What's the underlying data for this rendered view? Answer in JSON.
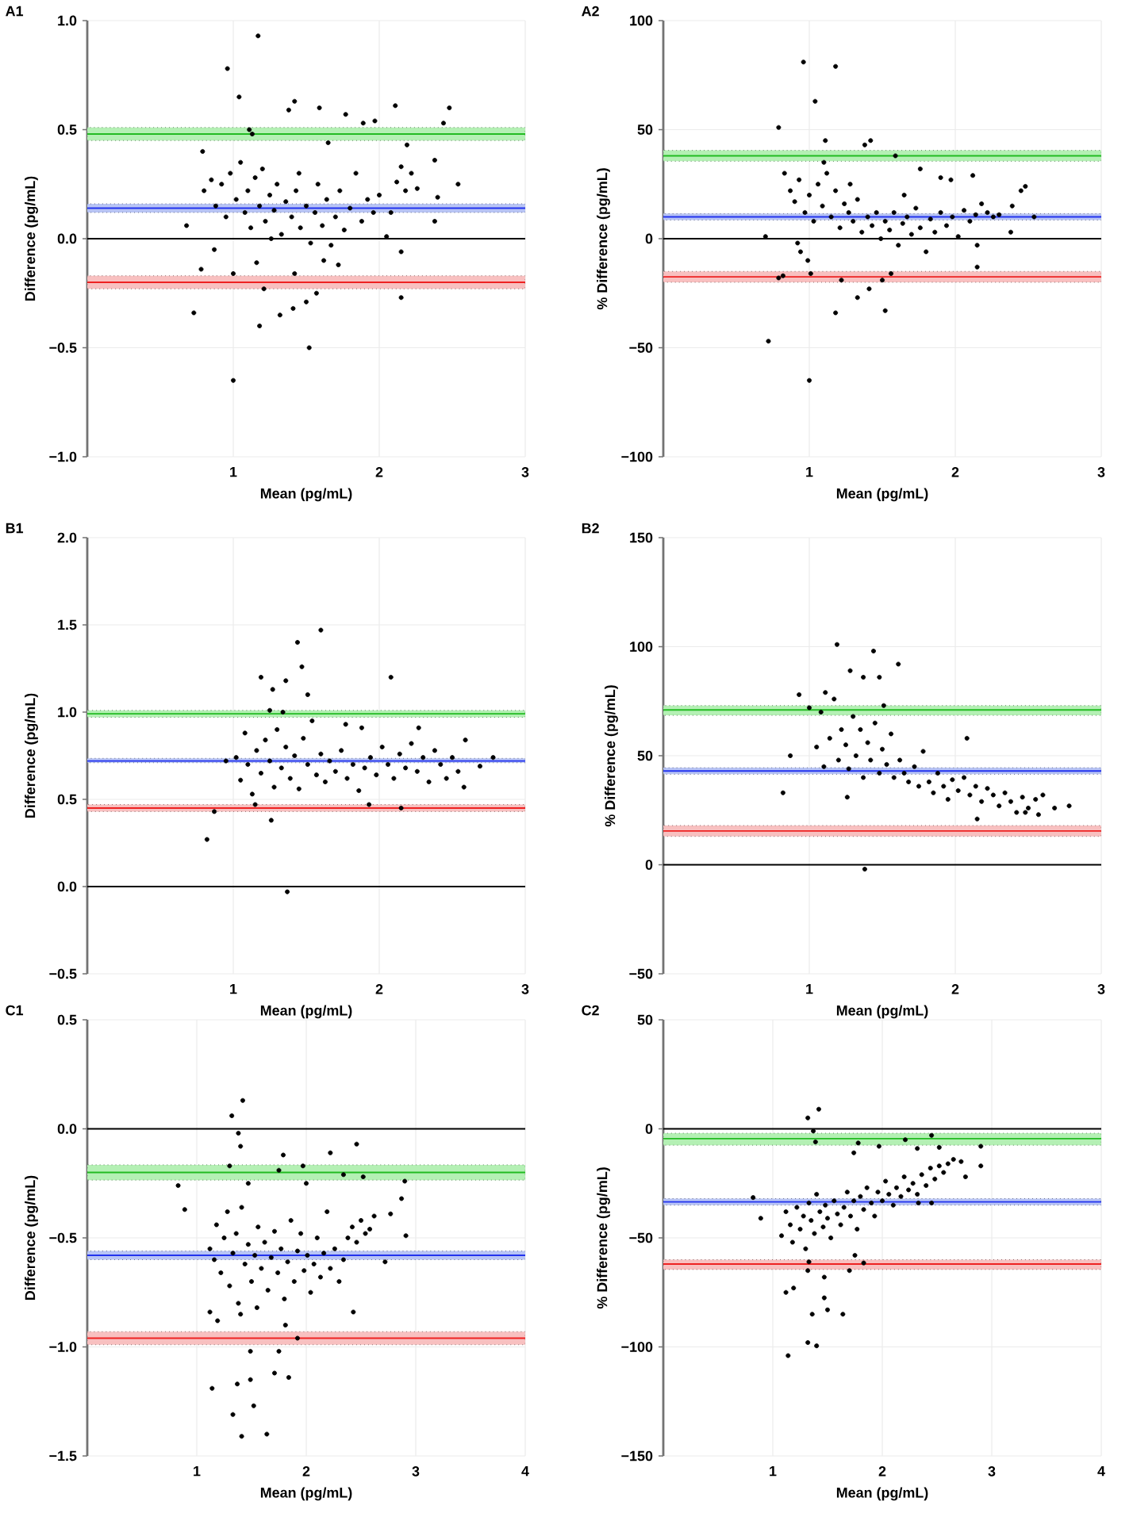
{
  "chart_data": [
    {
      "type": "scatter",
      "title": "A1",
      "xlabel": "Mean (pg/mL)",
      "ylabel": "Difference (pg/mL)",
      "color": "#000000",
      "grid": true,
      "xlim": [
        0,
        3
      ],
      "xticks": [
        1,
        2,
        3
      ],
      "ylim": [
        -1,
        1
      ],
      "yticks": [
        {
          "value": -1,
          "label": "−1.0"
        },
        {
          "value": -0.5,
          "label": "−0.5"
        },
        {
          "value": 0,
          "label": "0.0"
        },
        {
          "value": 0.5,
          "label": "0.5"
        },
        {
          "value": 1,
          "label": "1.0"
        }
      ],
      "ref_lines": [
        {
          "axis": "y",
          "value": 0,
          "color": "#000000"
        },
        {
          "axis": "y",
          "value": 0.48,
          "color": "#22bb22"
        },
        {
          "axis": "y",
          "value": 0.14,
          "color": "#2233ee"
        },
        {
          "axis": "y",
          "value": -0.2,
          "color": "#ee2222"
        }
      ],
      "bands": [
        {
          "axis": "y",
          "from": 0.45,
          "to": 0.51,
          "color": "#b4f0b4"
        },
        {
          "axis": "y",
          "from": 0.12,
          "to": 0.16,
          "color": "#b8c4f5"
        },
        {
          "axis": "y",
          "from": -0.23,
          "to": -0.17,
          "color": "#f8c0c0"
        }
      ],
      "x": [
        1.17,
        0.96,
        1.04,
        1.38,
        1.42,
        1.59,
        1.77,
        1.89,
        1.97,
        2.11,
        2.48,
        2.44,
        2.54,
        2.38,
        2.4,
        2.38,
        2.19,
        1.11,
        1.13,
        1.65,
        0.79,
        0.68,
        0.73,
        0.78,
        1.0,
        1.21,
        1.18,
        1.0,
        1.52,
        1.32,
        1.41,
        1.5,
        1.57,
        2.15,
        2.15,
        1.42,
        1.16,
        0.87,
        0.8,
        0.85,
        0.88,
        0.92,
        0.95,
        0.98,
        1.02,
        1.05,
        1.08,
        1.1,
        1.12,
        1.15,
        1.18,
        1.2,
        1.22,
        1.25,
        1.28,
        1.3,
        1.33,
        1.36,
        1.4,
        1.43,
        1.46,
        1.5,
        1.53,
        1.56,
        1.58,
        1.61,
        1.64,
        1.67,
        1.7,
        1.73,
        1.76,
        1.8,
        1.84,
        1.88,
        1.92,
        1.96,
        2.0,
        2.05,
        2.08,
        2.12,
        2.15,
        2.18,
        2.22,
        2.26,
        1.62,
        1.72,
        1.45,
        1.26
      ],
      "values": [
        0.93,
        0.78,
        0.65,
        0.59,
        0.63,
        0.6,
        0.57,
        0.53,
        0.54,
        0.61,
        0.6,
        0.53,
        0.25,
        0.36,
        0.19,
        0.08,
        0.43,
        0.5,
        0.48,
        0.44,
        0.4,
        0.06,
        -0.34,
        -0.14,
        -0.16,
        -0.23,
        -0.4,
        -0.65,
        -0.5,
        -0.35,
        -0.32,
        -0.29,
        -0.25,
        -0.27,
        -0.06,
        -0.16,
        -0.11,
        -0.05,
        0.22,
        0.27,
        0.15,
        0.25,
        0.1,
        0.3,
        0.18,
        0.35,
        0.12,
        0.22,
        0.05,
        0.28,
        0.15,
        0.32,
        0.08,
        0.2,
        0.13,
        0.25,
        0.02,
        0.17,
        0.1,
        0.22,
        0.05,
        0.15,
        -0.02,
        0.12,
        0.25,
        0.06,
        0.18,
        -0.03,
        0.1,
        0.22,
        0.04,
        0.14,
        0.3,
        0.08,
        0.18,
        0.12,
        0.2,
        0.01,
        0.12,
        0.26,
        0.33,
        0.22,
        0.3,
        0.23,
        -0.1,
        -0.12,
        0.3,
        0.0
      ]
    },
    {
      "type": "scatter",
      "title": "A2",
      "xlabel": "Mean (pg/mL)",
      "ylabel": "% Difference (pg/mL)",
      "color": "#000000",
      "grid": true,
      "xlim": [
        0,
        3
      ],
      "xticks": [
        1,
        2,
        3
      ],
      "ylim": [
        -100,
        100
      ],
      "yticks": [
        {
          "value": -100,
          "label": "−100"
        },
        {
          "value": -50,
          "label": "−50"
        },
        0,
        50,
        100
      ],
      "ref_lines": [
        {
          "axis": "y",
          "value": 0,
          "color": "#000000"
        },
        {
          "axis": "y",
          "value": 38,
          "color": "#22bb22"
        },
        {
          "axis": "y",
          "value": 10,
          "color": "#2233ee"
        },
        {
          "axis": "y",
          "value": -17.5,
          "color": "#ee2222"
        }
      ],
      "bands": [
        {
          "axis": "y",
          "from": 35.5,
          "to": 40.5,
          "color": "#b4f0b4"
        },
        {
          "axis": "y",
          "from": 8.5,
          "to": 11.5,
          "color": "#b8c4f5"
        },
        {
          "axis": "y",
          "from": -20,
          "to": -15,
          "color": "#f8c0c0"
        }
      ],
      "x": [
        0.96,
        1.18,
        1.04,
        0.79,
        1.11,
        1.42,
        1.38,
        1.59,
        1.76,
        1.9,
        1.97,
        2.12,
        2.48,
        2.45,
        2.54,
        2.38,
        2.39,
        2.15,
        2.15,
        0.72,
        1.0,
        0.99,
        1.01,
        1.22,
        1.18,
        1.33,
        1.41,
        1.52,
        1.5,
        0.7,
        0.79,
        0.82,
        0.92,
        0.94,
        1.56,
        0.83,
        0.87,
        0.9,
        0.93,
        0.97,
        1.0,
        1.03,
        1.06,
        1.09,
        1.12,
        1.15,
        1.18,
        1.21,
        1.24,
        1.27,
        1.3,
        1.33,
        1.36,
        1.4,
        1.43,
        1.46,
        1.49,
        1.52,
        1.55,
        1.58,
        1.61,
        1.64,
        1.67,
        1.7,
        1.73,
        1.76,
        1.8,
        1.83,
        1.86,
        1.9,
        1.94,
        1.98,
        2.02,
        2.06,
        2.1,
        2.14,
        2.18,
        2.22,
        2.26,
        2.3,
        1.65,
        1.28,
        1.1
      ],
      "values": [
        81,
        79,
        63,
        51,
        45,
        45,
        43,
        38,
        32,
        28,
        27,
        29,
        24,
        22,
        10,
        3,
        15,
        -3,
        -13,
        -47,
        -65,
        -10,
        -16,
        -19,
        -34,
        -27,
        -23,
        -33,
        -19,
        1,
        -18,
        -17,
        -2,
        -6,
        -16,
        30,
        22,
        17,
        27,
        12,
        20,
        8,
        25,
        15,
        30,
        10,
        22,
        5,
        16,
        12,
        8,
        18,
        3,
        10,
        6,
        12,
        0,
        8,
        4,
        12,
        -3,
        7,
        10,
        2,
        14,
        5,
        -6,
        9,
        3,
        12,
        6,
        10,
        1,
        13,
        8,
        11,
        16,
        12,
        10,
        11,
        20,
        25,
        35
      ]
    },
    {
      "type": "scatter",
      "title": "B1",
      "xlabel": "Mean (pg/mL)",
      "ylabel": "Difference (pg/mL)",
      "color": "#000000",
      "grid": true,
      "xlim": [
        0,
        3
      ],
      "xticks": [
        1,
        2,
        3
      ],
      "ylim": [
        -0.5,
        2
      ],
      "yticks": [
        {
          "value": -0.5,
          "label": "−0.5"
        },
        {
          "value": 0,
          "label": "0.0"
        },
        {
          "value": 0.5,
          "label": "0.5"
        },
        {
          "value": 1,
          "label": "1.0"
        },
        {
          "value": 1.5,
          "label": "1.5"
        },
        {
          "value": 2,
          "label": "2.0"
        }
      ],
      "ref_lines": [
        {
          "axis": "y",
          "value": 0,
          "color": "#000000"
        },
        {
          "axis": "y",
          "value": 0.99,
          "color": "#22bb22"
        },
        {
          "axis": "y",
          "value": 0.72,
          "color": "#2233ee"
        },
        {
          "axis": "y",
          "value": 0.45,
          "color": "#ee2222"
        }
      ],
      "bands": [
        {
          "axis": "y",
          "from": 0.97,
          "to": 1.01,
          "color": "#b4f0b4"
        },
        {
          "axis": "y",
          "from": 0.71,
          "to": 0.735,
          "color": "#b8c4f5"
        },
        {
          "axis": "y",
          "from": 0.43,
          "to": 0.47,
          "color": "#f8c0c0"
        }
      ],
      "x": [
        1.6,
        1.44,
        1.47,
        1.19,
        2.08,
        1.36,
        1.27,
        1.51,
        1.25,
        1.34,
        0.82,
        0.87,
        1.37,
        1.26,
        1.15,
        1.93,
        2.15,
        2.78,
        2.69,
        2.59,
        2.58,
        1.77,
        1.88,
        2.27,
        0.95,
        1.02,
        1.05,
        1.08,
        1.1,
        1.13,
        1.16,
        1.19,
        1.22,
        1.25,
        1.28,
        1.3,
        1.33,
        1.36,
        1.39,
        1.42,
        1.45,
        1.48,
        1.51,
        1.54,
        1.57,
        1.6,
        1.63,
        1.66,
        1.7,
        1.74,
        1.78,
        1.82,
        1.86,
        1.9,
        1.94,
        1.98,
        2.02,
        2.06,
        2.1,
        2.14,
        2.18,
        2.22,
        2.26,
        2.3,
        2.34,
        2.38,
        2.42,
        2.46,
        2.5,
        2.54
      ],
      "values": [
        1.47,
        1.4,
        1.26,
        1.2,
        1.2,
        1.18,
        1.13,
        1.1,
        1.01,
        1.0,
        0.27,
        0.43,
        -0.03,
        0.38,
        0.47,
        0.47,
        0.45,
        0.74,
        0.69,
        0.84,
        0.57,
        0.93,
        0.91,
        0.91,
        0.72,
        0.74,
        0.61,
        0.88,
        0.7,
        0.53,
        0.78,
        0.65,
        0.84,
        0.72,
        0.57,
        0.9,
        0.68,
        0.8,
        0.62,
        0.75,
        0.56,
        0.85,
        0.7,
        0.95,
        0.64,
        0.76,
        0.6,
        0.72,
        0.66,
        0.78,
        0.62,
        0.7,
        0.55,
        0.68,
        0.74,
        0.64,
        0.8,
        0.7,
        0.62,
        0.76,
        0.68,
        0.82,
        0.66,
        0.74,
        0.6,
        0.78,
        0.7,
        0.62,
        0.74,
        0.66
      ]
    },
    {
      "type": "scatter",
      "title": "B2",
      "xlabel": "Mean (pg/mL)",
      "ylabel": "% Difference (pg/mL)",
      "color": "#000000",
      "grid": true,
      "xlim": [
        0,
        3
      ],
      "xticks": [
        1,
        2,
        3
      ],
      "ylim": [
        -50,
        150
      ],
      "yticks": [
        {
          "value": -50,
          "label": "−50"
        },
        0,
        50,
        100,
        150
      ],
      "ref_lines": [
        {
          "axis": "y",
          "value": 0,
          "color": "#000000"
        },
        {
          "axis": "y",
          "value": 71,
          "color": "#22bb22"
        },
        {
          "axis": "y",
          "value": 43,
          "color": "#2233ee"
        },
        {
          "axis": "y",
          "value": 15.5,
          "color": "#ee2222"
        }
      ],
      "bands": [
        {
          "axis": "y",
          "from": 68.5,
          "to": 73,
          "color": "#b4f0b4"
        },
        {
          "axis": "y",
          "from": 41.5,
          "to": 44.5,
          "color": "#b8c4f5"
        },
        {
          "axis": "y",
          "from": 13,
          "to": 18,
          "color": "#f8c0c0"
        }
      ],
      "x": [
        1.19,
        1.44,
        1.61,
        1.28,
        1.37,
        1.48,
        0.93,
        1.11,
        0.82,
        0.87,
        1.26,
        1.38,
        2.15,
        2.08,
        2.78,
        2.57,
        2.68,
        1.51,
        1.0,
        1.05,
        1.08,
        1.1,
        1.14,
        1.17,
        1.2,
        1.22,
        1.25,
        1.27,
        1.3,
        1.32,
        1.35,
        1.37,
        1.4,
        1.42,
        1.45,
        1.48,
        1.5,
        1.53,
        1.56,
        1.58,
        1.62,
        1.65,
        1.68,
        1.72,
        1.75,
        1.78,
        1.82,
        1.85,
        1.88,
        1.92,
        1.95,
        1.98,
        2.02,
        2.06,
        2.1,
        2.14,
        2.18,
        2.22,
        2.26,
        2.3,
        2.34,
        2.38,
        2.42,
        2.46,
        2.5,
        2.55,
        2.6,
        2.48
      ],
      "values": [
        101,
        98,
        92,
        89,
        86,
        86,
        78,
        79,
        33,
        50,
        31,
        -2,
        21,
        58,
        27,
        23,
        26,
        73,
        72,
        54,
        70,
        45,
        58,
        76,
        48,
        62,
        55,
        44,
        68,
        50,
        62,
        40,
        56,
        48,
        65,
        42,
        53,
        46,
        60,
        40,
        48,
        42,
        38,
        45,
        36,
        52,
        38,
        33,
        42,
        36,
        30,
        39,
        34,
        40,
        32,
        36,
        29,
        35,
        32,
        27,
        33,
        29,
        24,
        31,
        26,
        30,
        32,
        24
      ]
    },
    {
      "type": "scatter",
      "title": "C1",
      "xlabel": "Mean (pg/mL)",
      "ylabel": "Difference (pg/mL)",
      "color": "#000000",
      "grid": true,
      "xlim": [
        0,
        4
      ],
      "xticks": [
        1,
        2,
        3,
        4
      ],
      "ylim": [
        -1.5,
        0.5
      ],
      "yticks": [
        {
          "value": -1.5,
          "label": "−1.5"
        },
        {
          "value": -1,
          "label": "−1.0"
        },
        {
          "value": -0.5,
          "label": "−0.5"
        },
        {
          "value": 0,
          "label": "0.0"
        },
        {
          "value": 0.5,
          "label": "0.5"
        }
      ],
      "ref_lines": [
        {
          "axis": "y",
          "value": 0,
          "color": "#000000"
        },
        {
          "axis": "y",
          "value": -0.2,
          "color": "#22bb22"
        },
        {
          "axis": "y",
          "value": -0.58,
          "color": "#2233ee"
        },
        {
          "axis": "y",
          "value": -0.96,
          "color": "#ee2222"
        }
      ],
      "bands": [
        {
          "axis": "y",
          "from": -0.235,
          "to": -0.165,
          "color": "#b4f0b4"
        },
        {
          "axis": "y",
          "from": -0.6,
          "to": -0.56,
          "color": "#b8c4f5"
        },
        {
          "axis": "y",
          "from": -0.99,
          "to": -0.93,
          "color": "#f8c0c0"
        }
      ],
      "x": [
        1.42,
        1.32,
        1.38,
        1.4,
        2.46,
        2.22,
        1.79,
        1.75,
        1.97,
        1.3,
        2.34,
        2.52,
        2.9,
        0.83,
        0.89,
        2.87,
        2.91,
        2.77,
        2.72,
        1.47,
        2.0,
        1.12,
        1.19,
        1.14,
        1.33,
        1.41,
        1.64,
        1.37,
        1.49,
        1.52,
        1.49,
        1.75,
        1.71,
        1.84,
        1.81,
        1.92,
        2.43,
        1.12,
        1.16,
        1.18,
        1.22,
        1.25,
        1.28,
        1.3,
        1.33,
        1.36,
        1.38,
        1.41,
        1.44,
        1.47,
        1.5,
        1.53,
        1.56,
        1.59,
        1.62,
        1.65,
        1.68,
        1.71,
        1.74,
        1.77,
        1.8,
        1.83,
        1.86,
        1.89,
        1.92,
        1.95,
        1.98,
        2.01,
        2.04,
        2.07,
        2.1,
        2.13,
        2.16,
        2.19,
        2.22,
        2.26,
        2.3,
        2.34,
        2.38,
        2.42,
        2.46,
        2.5,
        2.54,
        2.58,
        2.62,
        1.4,
        1.55
      ],
      "values": [
        0.13,
        0.06,
        -0.02,
        -0.08,
        -0.07,
        -0.11,
        -0.12,
        -0.19,
        -0.17,
        -0.17,
        -0.21,
        -0.22,
        -0.24,
        -0.26,
        -0.37,
        -0.32,
        -0.49,
        -0.39,
        -0.61,
        -0.25,
        -0.25,
        -0.84,
        -0.88,
        -1.19,
        -1.31,
        -1.41,
        -1.4,
        -1.17,
        -1.15,
        -1.27,
        -1.02,
        -1.02,
        -1.12,
        -1.14,
        -0.9,
        -0.96,
        -0.84,
        -0.55,
        -0.6,
        -0.44,
        -0.66,
        -0.5,
        -0.38,
        -0.72,
        -0.57,
        -0.48,
        -0.8,
        -0.36,
        -0.62,
        -0.53,
        -0.7,
        -0.58,
        -0.45,
        -0.64,
        -0.52,
        -0.74,
        -0.59,
        -0.47,
        -0.66,
        -0.55,
        -0.78,
        -0.61,
        -0.42,
        -0.7,
        -0.56,
        -0.48,
        -0.65,
        -0.58,
        -0.75,
        -0.62,
        -0.5,
        -0.68,
        -0.57,
        -0.38,
        -0.64,
        -0.55,
        -0.7,
        -0.6,
        -0.5,
        -0.45,
        -0.52,
        -0.42,
        -0.48,
        -0.46,
        -0.4,
        -0.85,
        -0.82
      ]
    },
    {
      "type": "scatter",
      "title": "C2",
      "xlabel": "Mean (pg/mL)",
      "ylabel": "% Difference (pg/mL)",
      "color": "#000000",
      "grid": true,
      "xlim": [
        0,
        4
      ],
      "xticks": [
        1,
        2,
        3,
        4
      ],
      "ylim": [
        -150,
        50
      ],
      "yticks": [
        {
          "value": -150,
          "label": "−150"
        },
        {
          "value": -100,
          "label": "−100"
        },
        {
          "value": -50,
          "label": "−50"
        },
        0,
        50
      ],
      "ref_lines": [
        {
          "axis": "y",
          "value": 0,
          "color": "#000000"
        },
        {
          "axis": "y",
          "value": -4.5,
          "color": "#22bb22"
        },
        {
          "axis": "y",
          "value": -33.5,
          "color": "#2233ee"
        },
        {
          "axis": "y",
          "value": -62,
          "color": "#ee2222"
        }
      ],
      "bands": [
        {
          "axis": "y",
          "from": -7.5,
          "to": -2,
          "color": "#b4f0b4"
        },
        {
          "axis": "y",
          "from": -35,
          "to": -32,
          "color": "#b8c4f5"
        },
        {
          "axis": "y",
          "from": -64.5,
          "to": -60,
          "color": "#f8c0c0"
        }
      ],
      "x": [
        1.42,
        1.32,
        1.37,
        1.39,
        2.21,
        2.45,
        1.78,
        1.74,
        1.97,
        2.9,
        2.9,
        0.82,
        0.89,
        1.14,
        1.32,
        1.4,
        1.12,
        1.19,
        1.36,
        1.5,
        1.64,
        1.47,
        1.47,
        1.7,
        1.83,
        1.75,
        1.32,
        1.33,
        1.08,
        2.32,
        2.52,
        1.12,
        1.16,
        1.18,
        1.22,
        1.25,
        1.28,
        1.3,
        1.33,
        1.35,
        1.38,
        1.4,
        1.43,
        1.46,
        1.48,
        1.5,
        1.53,
        1.56,
        1.59,
        1.62,
        1.65,
        1.68,
        1.71,
        1.74,
        1.77,
        1.8,
        1.83,
        1.86,
        1.9,
        1.93,
        1.96,
        2.0,
        2.03,
        2.06,
        2.1,
        2.13,
        2.17,
        2.2,
        2.24,
        2.28,
        2.32,
        2.36,
        2.4,
        2.44,
        2.48,
        2.52,
        2.56,
        2.6,
        2.65,
        2.72,
        2.76,
        2.45,
        2.33
      ],
      "values": [
        9,
        5,
        -1,
        -6,
        -5,
        -3,
        -6.5,
        -11,
        -8,
        -8,
        -17,
        -31.5,
        -41,
        -104,
        -98,
        -99.5,
        -75,
        -73,
        -85,
        -83,
        -85,
        -77.5,
        -68,
        -65,
        -61.5,
        -58,
        -65,
        -61,
        -49,
        -9,
        -8.5,
        -38,
        -44,
        -52,
        -36,
        -46,
        -40,
        -55,
        -34,
        -42,
        -48,
        -30,
        -38,
        -45,
        -35,
        -41,
        -50,
        -33,
        -39,
        -44,
        -36,
        -29,
        -40,
        -33,
        -46,
        -31,
        -37,
        -27,
        -34,
        -40,
        -29,
        -33,
        -24,
        -30,
        -35,
        -27,
        -31,
        -22,
        -28,
        -25,
        -30,
        -21,
        -26,
        -18,
        -23,
        -17,
        -20,
        -16,
        -14,
        -15,
        -22,
        -34,
        -34
      ]
    }
  ]
}
